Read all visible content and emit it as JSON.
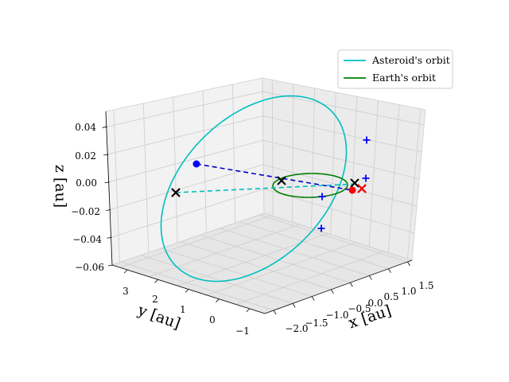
{
  "chart_data": {
    "type": "line",
    "projection": "3d",
    "title": "",
    "xlabel": "x [au]",
    "ylabel": "y [au]",
    "zlabel": "z [au]",
    "x_ticks": [
      "−2.0",
      "−1.5",
      "−1.0",
      "−0.5",
      "0.0",
      "0.5",
      "1.0",
      "1.5"
    ],
    "y_ticks": [
      "−1",
      "0",
      "1",
      "2",
      "3"
    ],
    "z_ticks": [
      "−0.06",
      "−0.04",
      "−0.02",
      "0.00",
      "0.02",
      "0.04"
    ],
    "xlim": [
      -2.2,
      1.7
    ],
    "ylim": [
      -1.2,
      3.6
    ],
    "zlim": [
      -0.062,
      0.046
    ],
    "grid": true,
    "legend_position": "top-right",
    "series": [
      {
        "name": "Asteroid's orbit",
        "color": "#00bfbf",
        "style": "solid",
        "kind": "orbit"
      },
      {
        "name": "Earth's orbit",
        "color": "#008000",
        "style": "solid",
        "kind": "orbit"
      }
    ],
    "markers": [
      {
        "kind": "asteroid-position",
        "color": "#0000ff",
        "shape": "circle"
      },
      {
        "kind": "earth-position",
        "color": "#ff0000",
        "shape": "circle"
      },
      {
        "kind": "node",
        "color": "#000000",
        "shape": "x"
      },
      {
        "kind": "node-red",
        "color": "#ff0000",
        "shape": "x"
      },
      {
        "kind": "reference-point",
        "color": "#0000ff",
        "shape": "plus"
      }
    ],
    "connectors": [
      {
        "kind": "asteroid-to-earth",
        "color": "#0000cc",
        "style": "dashed"
      },
      {
        "kind": "node-line",
        "color": "#00bfbf",
        "style": "dashed"
      }
    ]
  }
}
